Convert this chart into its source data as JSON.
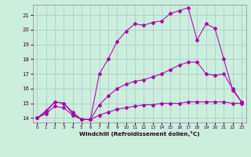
{
  "xlabel": "Windchill (Refroidissement éolien,°C)",
  "bg_color": "#cceedd",
  "grid_color": "#aacccc",
  "line_color": "#aa00aa",
  "xlim": [
    -0.5,
    23.5
  ],
  "ylim": [
    13.7,
    21.7
  ],
  "yticks": [
    14,
    15,
    16,
    17,
    18,
    19,
    20,
    21
  ],
  "xticks": [
    0,
    1,
    2,
    3,
    4,
    5,
    6,
    7,
    8,
    9,
    10,
    11,
    12,
    13,
    14,
    15,
    16,
    17,
    18,
    19,
    20,
    21,
    22,
    23
  ],
  "series": [
    [
      14.0,
      14.5,
      15.1,
      15.0,
      14.4,
      13.9,
      13.9,
      17.0,
      18.0,
      19.2,
      19.9,
      20.4,
      20.3,
      20.5,
      20.6,
      21.1,
      21.3,
      21.5,
      19.3,
      20.4,
      20.1,
      18.0,
      15.9,
      15.1
    ],
    [
      14.0,
      14.4,
      15.1,
      15.0,
      14.3,
      13.9,
      13.9,
      14.9,
      15.5,
      16.0,
      16.3,
      16.5,
      16.6,
      16.8,
      17.0,
      17.3,
      17.6,
      17.8,
      17.8,
      17.0,
      16.9,
      17.0,
      16.0,
      15.1
    ],
    [
      14.0,
      14.3,
      14.8,
      14.7,
      14.2,
      13.9,
      13.9,
      14.2,
      14.4,
      14.6,
      14.7,
      14.8,
      14.9,
      14.9,
      15.0,
      15.0,
      15.0,
      15.1,
      15.1,
      15.1,
      15.1,
      15.1,
      15.0,
      15.0
    ]
  ]
}
